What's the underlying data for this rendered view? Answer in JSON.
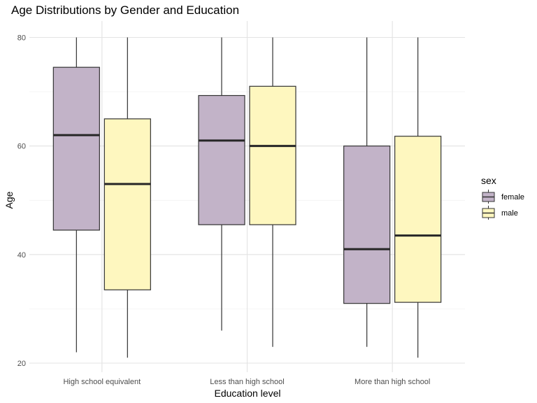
{
  "chart_data": {
    "type": "boxplot",
    "title": "Age Distributions by Gender and Education",
    "xlabel": "Education level",
    "ylabel": "Age",
    "ylim": [
      20,
      80
    ],
    "y_ticks": [
      20,
      40,
      60,
      80
    ],
    "grid": true,
    "categories": [
      "High school equivalent",
      "Less than high school",
      "More than high school"
    ],
    "legend": {
      "title": "sex",
      "position": "right"
    },
    "series": [
      {
        "name": "female",
        "color": "#c2b3c8",
        "boxes": [
          {
            "min": 22,
            "q1": 44.5,
            "median": 62,
            "q3": 74.5,
            "max": 80
          },
          {
            "min": 26,
            "q1": 45.5,
            "median": 61,
            "q3": 69.3,
            "max": 80
          },
          {
            "min": 23,
            "q1": 31,
            "median": 41,
            "q3": 60,
            "max": 80
          }
        ]
      },
      {
        "name": "male",
        "color": "#fef7bf",
        "boxes": [
          {
            "min": 21,
            "q1": 33.5,
            "median": 53,
            "q3": 65,
            "max": 80
          },
          {
            "min": 23,
            "q1": 45.5,
            "median": 60,
            "q3": 71,
            "max": 80
          },
          {
            "min": 21,
            "q1": 31.2,
            "median": 43.5,
            "q3": 61.8,
            "max": 80
          }
        ]
      }
    ]
  }
}
